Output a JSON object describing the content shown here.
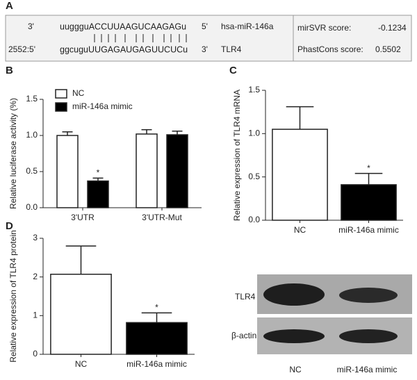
{
  "panel_labels": [
    "A",
    "B",
    "C",
    "D"
  ],
  "alignment": {
    "mirna": {
      "end5": "5'",
      "end3": "3'",
      "sequence": "uuggguACCUUAAGUCAAGAGu",
      "name": "hsa-miR-146a"
    },
    "target": {
      "position": "2552:5'",
      "end3": "3'",
      "sequence": "ggcuguUUGAGAUGAGUUCUCu",
      "name": "TLR4"
    },
    "scores": [
      {
        "label": "mirSVR score:",
        "value": "-0.1234"
      },
      {
        "label": "PhastCons score:",
        "value": "0.5502"
      }
    ]
  },
  "chart_data": [
    {
      "type": "bar",
      "ylabel": "Relative luciferase activity (%)",
      "categories": [
        "3'UTR",
        "3'UTR-Mut"
      ],
      "series": [
        {
          "name": "NC",
          "color": "#ffffff",
          "values": [
            1.0,
            1.02
          ],
          "errors": [
            0.05,
            0.06
          ]
        },
        {
          "name": "miR-146a mimic",
          "color": "#000000",
          "values": [
            0.37,
            1.01
          ],
          "errors": [
            0.04,
            0.05
          ]
        }
      ],
      "annotations": [
        {
          "text": "*",
          "series": 1,
          "category": 0
        }
      ],
      "ylim": [
        0,
        1.5
      ],
      "yticks": [
        {
          "value": 0,
          "label": "0.0"
        },
        0.5,
        {
          "value": 1,
          "label": "1.0"
        },
        1.5
      ],
      "legend": "top-left"
    },
    {
      "type": "bar",
      "ylabel": "Relative expression of TLR4 mRNA",
      "categories": [
        "NC",
        "miR-146a mimic"
      ],
      "series": [
        {
          "colors": [
            "#ffffff",
            "#000000"
          ],
          "values": [
            1.05,
            0.41
          ],
          "errors": [
            0.26,
            0.13
          ]
        }
      ],
      "annotations": [
        {
          "text": "*",
          "series": 0,
          "category": 1
        }
      ],
      "ylim": [
        0,
        1.5
      ],
      "yticks": [
        {
          "value": 0,
          "label": "0.0"
        },
        0.5,
        {
          "value": 1,
          "label": "1.0"
        },
        1.5
      ]
    },
    {
      "type": "bar",
      "ylabel": "Relative expression of TLR4 protein",
      "categories": [
        "NC",
        "miR-146a mimic"
      ],
      "series": [
        {
          "colors": [
            "#ffffff",
            "#000000"
          ],
          "values": [
            2.07,
            0.82
          ],
          "errors": [
            0.73,
            0.25
          ]
        }
      ],
      "annotations": [
        {
          "text": "*",
          "series": 0,
          "category": 1
        }
      ],
      "ylim": [
        0,
        3
      ],
      "yticks": [
        0,
        1,
        2,
        3
      ]
    }
  ],
  "blot": {
    "bands": [
      "TLR4",
      "β-actin"
    ],
    "lanes": [
      "NC",
      "miR-146a mimic"
    ]
  }
}
